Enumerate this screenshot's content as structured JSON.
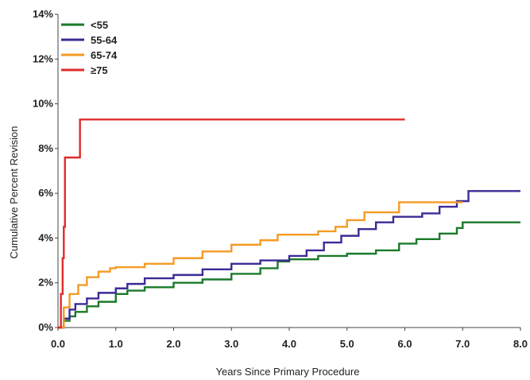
{
  "chart_data": {
    "type": "line",
    "xlabel": "Years Since Primary Procedure",
    "ylabel": "Cumulative Percent Revision",
    "xlim": [
      0,
      8
    ],
    "ylim": [
      0,
      14
    ],
    "x_ticks": [
      "0.0",
      "1.0",
      "2.0",
      "3.0",
      "4.0",
      "5.0",
      "6.0",
      "7.0",
      "8.0"
    ],
    "y_ticks": [
      "0%",
      "2%",
      "4%",
      "6%",
      "8%",
      "10%",
      "12%",
      "14%"
    ],
    "grid": false,
    "legend_position": "top-left",
    "step": true,
    "series": [
      {
        "name": "<55",
        "color": "#1a7a2a",
        "points": [
          [
            0,
            0
          ],
          [
            0.1,
            0.3
          ],
          [
            0.2,
            0.5
          ],
          [
            0.3,
            0.7
          ],
          [
            0.5,
            0.95
          ],
          [
            0.7,
            1.15
          ],
          [
            1.0,
            1.5
          ],
          [
            1.2,
            1.65
          ],
          [
            1.5,
            1.8
          ],
          [
            2.0,
            2.0
          ],
          [
            2.5,
            2.15
          ],
          [
            3.0,
            2.4
          ],
          [
            3.5,
            2.65
          ],
          [
            3.8,
            2.95
          ],
          [
            4.0,
            3.05
          ],
          [
            4.5,
            3.2
          ],
          [
            5.0,
            3.3
          ],
          [
            5.5,
            3.45
          ],
          [
            5.9,
            3.75
          ],
          [
            6.2,
            3.95
          ],
          [
            6.6,
            4.2
          ],
          [
            6.9,
            4.45
          ],
          [
            7.0,
            4.7
          ],
          [
            8.0,
            4.7
          ]
        ]
      },
      {
        "name": "55-64",
        "color": "#3c2a96",
        "points": [
          [
            0,
            0
          ],
          [
            0.1,
            0.4
          ],
          [
            0.2,
            0.8
          ],
          [
            0.3,
            1.05
          ],
          [
            0.5,
            1.3
          ],
          [
            0.7,
            1.55
          ],
          [
            1.0,
            1.75
          ],
          [
            1.2,
            1.95
          ],
          [
            1.5,
            2.2
          ],
          [
            2.0,
            2.35
          ],
          [
            2.5,
            2.6
          ],
          [
            3.0,
            2.85
          ],
          [
            3.5,
            3.0
          ],
          [
            4.0,
            3.2
          ],
          [
            4.3,
            3.45
          ],
          [
            4.6,
            3.8
          ],
          [
            4.9,
            4.1
          ],
          [
            5.2,
            4.4
          ],
          [
            5.5,
            4.7
          ],
          [
            5.8,
            4.95
          ],
          [
            6.3,
            5.1
          ],
          [
            6.6,
            5.4
          ],
          [
            6.9,
            5.65
          ],
          [
            7.1,
            6.1
          ],
          [
            8.0,
            6.1
          ]
        ]
      },
      {
        "name": "65-74",
        "color": "#f59a25",
        "points": [
          [
            0,
            0
          ],
          [
            0.1,
            0.9
          ],
          [
            0.2,
            1.5
          ],
          [
            0.35,
            1.9
          ],
          [
            0.5,
            2.25
          ],
          [
            0.7,
            2.5
          ],
          [
            0.9,
            2.65
          ],
          [
            1.0,
            2.7
          ],
          [
            1.5,
            2.85
          ],
          [
            2.0,
            3.1
          ],
          [
            2.5,
            3.4
          ],
          [
            3.0,
            3.7
          ],
          [
            3.5,
            3.9
          ],
          [
            3.8,
            4.15
          ],
          [
            4.5,
            4.3
          ],
          [
            4.8,
            4.5
          ],
          [
            5.0,
            4.8
          ],
          [
            5.3,
            5.15
          ],
          [
            5.9,
            5.6
          ],
          [
            7.0,
            5.6
          ]
        ]
      },
      {
        "name": "≥75",
        "color": "#e02b2b",
        "points": [
          [
            0,
            0
          ],
          [
            0.05,
            1.5
          ],
          [
            0.08,
            3.1
          ],
          [
            0.1,
            4.5
          ],
          [
            0.12,
            7.6
          ],
          [
            0.35,
            7.6
          ],
          [
            0.38,
            9.3
          ],
          [
            6.0,
            9.3
          ]
        ]
      }
    ]
  }
}
